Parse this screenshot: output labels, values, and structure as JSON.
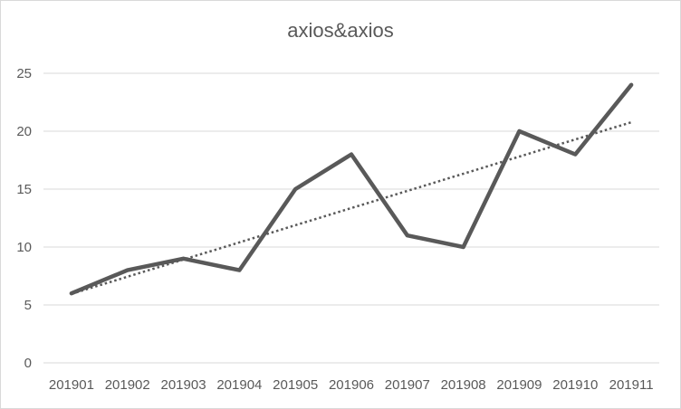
{
  "chart_data": {
    "type": "line",
    "title": "axios&axios",
    "xlabel": "",
    "ylabel": "",
    "categories": [
      "201901",
      "201902",
      "201903",
      "201904",
      "201905",
      "201906",
      "201907",
      "201908",
      "201909",
      "201910",
      "201911"
    ],
    "series": [
      {
        "values": [
          6,
          8,
          9,
          8,
          15,
          18,
          11,
          10,
          20,
          18,
          24
        ],
        "color": "#595959"
      }
    ],
    "trendline": {
      "type": "linear",
      "style": "dotted",
      "color": "#595959"
    },
    "ylim": [
      0,
      25
    ],
    "yticks": [
      0,
      5,
      10,
      15,
      20,
      25
    ],
    "grid": true,
    "legend": "none"
  }
}
